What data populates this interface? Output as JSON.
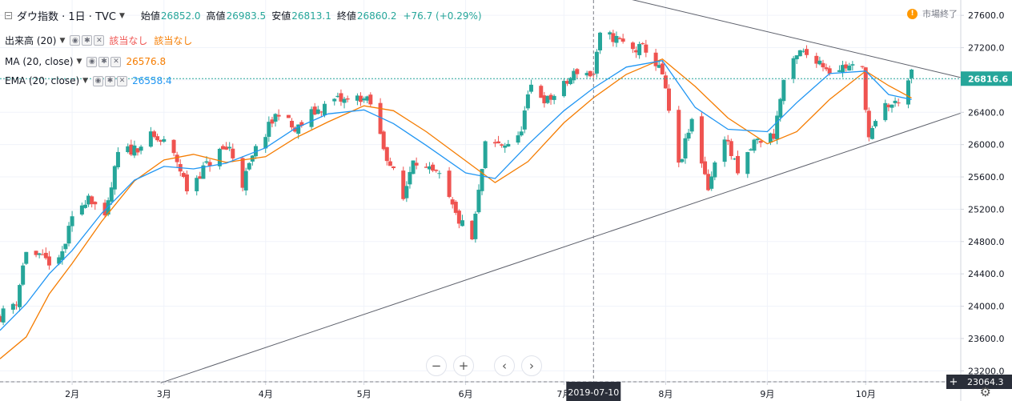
{
  "legend": {
    "symbol": "ダウ指数 · 1日 · TVC",
    "open_label": "始値",
    "open": "26852.0",
    "high_label": "高値",
    "high": "26983.5",
    "low_label": "安値",
    "low": "26813.1",
    "close_label": "終値",
    "close": "26860.2",
    "change": "+76.7 (+0.29%)",
    "market_status": "市場終了",
    "market_icon": "!"
  },
  "indicators": {
    "volume": {
      "name": "出来高 (20)",
      "value1": "該当なし",
      "value2": "該当なし"
    },
    "ma": {
      "name": "MA (20, close)",
      "value": "26576.8"
    },
    "ema": {
      "name": "EMA (20, close)",
      "value": "26558.4"
    }
  },
  "nav": {
    "zoom_out": "−",
    "zoom_in": "+",
    "prev": "‹",
    "next": "›"
  },
  "colors": {
    "up": "#26a69a",
    "down": "#ef5350",
    "ma": "#f57c00",
    "ema": "#2196f3",
    "price_line": "#26a69a",
    "axis_text": "#131722",
    "grid": "#f0f3fa"
  },
  "chart_data": {
    "type": "candlestick",
    "y_axis": {
      "range": [
        23064.3,
        27790
      ],
      "ticks": [
        23200,
        23600,
        24000,
        24400,
        24800,
        25200,
        25600,
        26000,
        26400,
        26800,
        27200,
        27600
      ],
      "tick_labels": [
        "23200.0",
        "23600.0",
        "24000.0",
        "24400.0",
        "24800.0",
        "25200.0",
        "25600.0",
        "26000.0",
        "26400.0",
        "26800.0",
        "27200.0",
        "27600.0"
      ]
    },
    "x_axis": {
      "start": "2019-01-10",
      "end": "2019-10-30",
      "tick_dates": [
        "2019-02-01",
        "2019-03-01",
        "2019-04-01",
        "2019-05-01",
        "2019-06-01",
        "2019-07-01",
        "2019-08-01",
        "2019-09-01",
        "2019-10-01"
      ],
      "tick_labels": [
        "2月",
        "3月",
        "4月",
        "5月",
        "6月",
        "7月",
        "8月",
        "9月",
        "10月"
      ]
    },
    "last_price": {
      "value": 26816.6,
      "label": "26816.6"
    },
    "crosshair": {
      "date": "2019-07-10",
      "date_label": "2019-07-10",
      "value": 23064.3,
      "value_label": "23064.3"
    },
    "close_points": [
      [
        "2019-01-10",
        23880
      ],
      [
        "2019-01-15",
        24070
      ],
      [
        "2019-01-18",
        24700
      ],
      [
        "2019-01-23",
        24570
      ],
      [
        "2019-01-28",
        24530
      ],
      [
        "2019-02-01",
        25060
      ],
      [
        "2019-02-06",
        25390
      ],
      [
        "2019-02-11",
        25050
      ],
      [
        "2019-02-15",
        25880
      ],
      [
        "2019-02-20",
        25950
      ],
      [
        "2019-02-25",
        26090
      ],
      [
        "2019-03-01",
        26020
      ],
      [
        "2019-03-05",
        25800
      ],
      [
        "2019-03-08",
        25450
      ],
      [
        "2019-03-13",
        25700
      ],
      [
        "2019-03-18",
        25910
      ],
      [
        "2019-03-21",
        25960
      ],
      [
        "2019-03-25",
        25520
      ],
      [
        "2019-03-29",
        25930
      ],
      [
        "2019-04-05",
        26420
      ],
      [
        "2019-04-10",
        26160
      ],
      [
        "2019-04-15",
        26380
      ],
      [
        "2019-04-22",
        26550
      ],
      [
        "2019-04-26",
        26540
      ],
      [
        "2019-04-30",
        26590
      ],
      [
        "2019-05-03",
        26500
      ],
      [
        "2019-05-07",
        25970
      ],
      [
        "2019-05-13",
        25320
      ],
      [
        "2019-05-16",
        25860
      ],
      [
        "2019-05-20",
        25680
      ],
      [
        "2019-05-24",
        25590
      ],
      [
        "2019-05-29",
        25120
      ],
      [
        "2019-06-03",
        24820
      ],
      [
        "2019-06-07",
        25980
      ],
      [
        "2019-06-12",
        26000
      ],
      [
        "2019-06-17",
        26060
      ],
      [
        "2019-06-21",
        26720
      ],
      [
        "2019-06-26",
        26540
      ],
      [
        "2019-07-01",
        26720
      ],
      [
        "2019-07-05",
        26920
      ],
      [
        "2019-07-10",
        26860
      ],
      [
        "2019-07-12",
        27330
      ],
      [
        "2019-07-16",
        27330
      ],
      [
        "2019-07-22",
        27170
      ],
      [
        "2019-07-26",
        27190
      ],
      [
        "2019-07-31",
        26860
      ],
      [
        "2019-08-05",
        25720
      ],
      [
        "2019-08-09",
        26290
      ],
      [
        "2019-08-14",
        25480
      ],
      [
        "2019-08-19",
        26130
      ],
      [
        "2019-08-23",
        25630
      ],
      [
        "2019-08-28",
        26030
      ],
      [
        "2019-09-03",
        26120
      ],
      [
        "2019-09-06",
        26790
      ],
      [
        "2019-09-11",
        27140
      ],
      [
        "2019-09-16",
        27070
      ],
      [
        "2019-09-20",
        26930
      ],
      [
        "2019-09-25",
        26970
      ],
      [
        "2019-09-30",
        26920
      ],
      [
        "2019-10-02",
        26080
      ],
      [
        "2019-10-07",
        26480
      ],
      [
        "2019-10-10",
        26500
      ],
      [
        "2019-10-14",
        26790
      ],
      [
        "2019-10-15",
        26860
      ]
    ],
    "series": [
      {
        "name": "MA (20, close)",
        "type": "line",
        "points": [
          [
            "2019-01-10",
            23350
          ],
          [
            "2019-01-18",
            23620
          ],
          [
            "2019-01-25",
            24150
          ],
          [
            "2019-02-01",
            24530
          ],
          [
            "2019-02-10",
            25050
          ],
          [
            "2019-02-20",
            25550
          ],
          [
            "2019-03-01",
            25810
          ],
          [
            "2019-03-10",
            25880
          ],
          [
            "2019-03-20",
            25780
          ],
          [
            "2019-04-01",
            25850
          ],
          [
            "2019-04-10",
            26080
          ],
          [
            "2019-04-20",
            26280
          ],
          [
            "2019-05-01",
            26480
          ],
          [
            "2019-05-10",
            26420
          ],
          [
            "2019-05-20",
            26160
          ],
          [
            "2019-06-01",
            25800
          ],
          [
            "2019-06-10",
            25530
          ],
          [
            "2019-06-20",
            25790
          ],
          [
            "2019-07-01",
            26270
          ],
          [
            "2019-07-10",
            26580
          ],
          [
            "2019-07-20",
            26870
          ],
          [
            "2019-07-31",
            27060
          ],
          [
            "2019-08-10",
            26720
          ],
          [
            "2019-08-20",
            26330
          ],
          [
            "2019-09-01",
            26010
          ],
          [
            "2019-09-10",
            26160
          ],
          [
            "2019-09-20",
            26560
          ],
          [
            "2019-10-01",
            26910
          ],
          [
            "2019-10-08",
            26730
          ],
          [
            "2019-10-15",
            26577
          ]
        ]
      },
      {
        "name": "EMA (20, close)",
        "type": "line",
        "points": [
          [
            "2019-01-10",
            23700
          ],
          [
            "2019-01-18",
            24030
          ],
          [
            "2019-01-25",
            24400
          ],
          [
            "2019-02-01",
            24690
          ],
          [
            "2019-02-10",
            25150
          ],
          [
            "2019-02-20",
            25560
          ],
          [
            "2019-03-01",
            25730
          ],
          [
            "2019-03-10",
            25700
          ],
          [
            "2019-03-20",
            25770
          ],
          [
            "2019-04-01",
            25960
          ],
          [
            "2019-04-10",
            26200
          ],
          [
            "2019-04-20",
            26380
          ],
          [
            "2019-05-01",
            26430
          ],
          [
            "2019-05-10",
            26260
          ],
          [
            "2019-05-20",
            25990
          ],
          [
            "2019-06-01",
            25650
          ],
          [
            "2019-06-10",
            25580
          ],
          [
            "2019-06-20",
            26000
          ],
          [
            "2019-07-01",
            26420
          ],
          [
            "2019-07-10",
            26700
          ],
          [
            "2019-07-20",
            26960
          ],
          [
            "2019-07-31",
            27040
          ],
          [
            "2019-08-10",
            26460
          ],
          [
            "2019-08-20",
            26190
          ],
          [
            "2019-09-01",
            26160
          ],
          [
            "2019-09-10",
            26520
          ],
          [
            "2019-09-20",
            26880
          ],
          [
            "2019-10-01",
            26910
          ],
          [
            "2019-10-08",
            26620
          ],
          [
            "2019-10-15",
            26558
          ]
        ]
      }
    ],
    "trendlines": [
      {
        "from": [
          "2019-02-28",
          23050
        ],
        "to": [
          "2019-10-30",
          26390
        ]
      },
      {
        "from": [
          "2019-07-16",
          27850
        ],
        "to": [
          "2019-10-30",
          26830
        ]
      }
    ]
  }
}
